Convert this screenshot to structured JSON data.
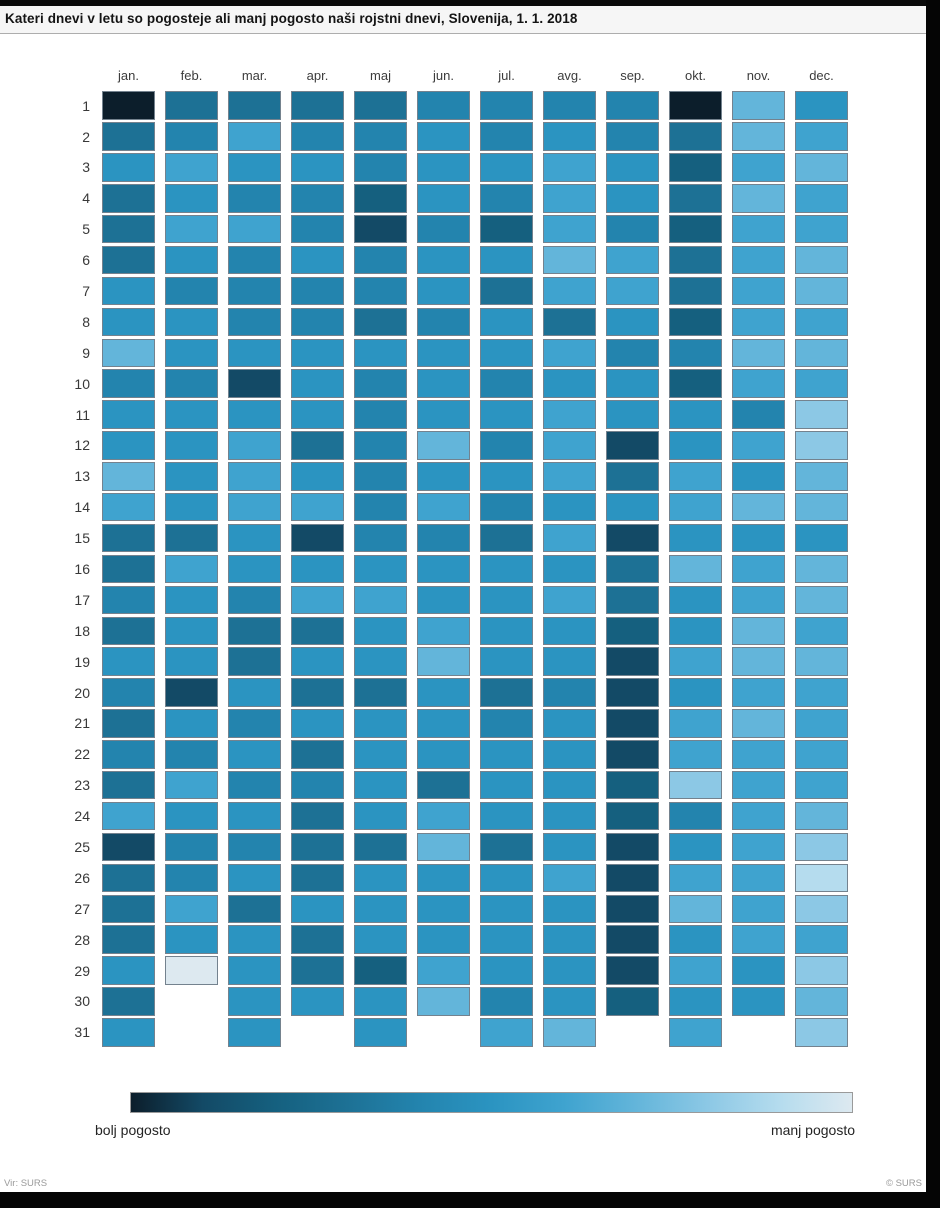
{
  "title": "Kateri dnevi v letu so pogosteje ali manj pogosto naši rojstni dnevi, Slovenija, 1. 1. 2018",
  "legend": {
    "more_label": "bolj pogosto",
    "less_label": "manj pogosto"
  },
  "footer": {
    "source": "Vir: SURS",
    "copyright": "© SURS"
  },
  "chart_data": {
    "type": "heatmap",
    "title": "Kateri dnevi v letu so pogosteje ali manj pogosto naši rojstni dnevi, Slovenija, 1. 1. 2018",
    "legend_dark_label": "bolj pogosto",
    "legend_light_label": "manj pogosto",
    "columns": [
      "jan.",
      "feb.",
      "mar.",
      "apr.",
      "maj",
      "jun.",
      "jul.",
      "avg.",
      "sep.",
      "okt.",
      "nov.",
      "dec."
    ],
    "row_labels": [
      "1",
      "2",
      "3",
      "4",
      "5",
      "6",
      "7",
      "8",
      "9",
      "10",
      "11",
      "12",
      "13",
      "14",
      "15",
      "16",
      "17",
      "18",
      "19",
      "20",
      "21",
      "22",
      "23",
      "24",
      "25",
      "26",
      "27",
      "28",
      "29",
      "30",
      "31"
    ],
    "value_scale": {
      "min": 0,
      "max": 10,
      "meaning": "relative birthday frequency estimated from cell shade: 10 = darkest (bolj pogosto), 0 = lightest (manj pogosto)"
    },
    "palette_light_to_dark": [
      "#dde9f0",
      "#b5dcee",
      "#8cc8e5",
      "#63b5da",
      "#3fa3cf",
      "#2b94c1",
      "#2384ae",
      "#1d7195",
      "#15607f",
      "#134a66",
      "#0c1e2b"
    ],
    "series": [
      {
        "name": "jan.",
        "values": [
          10,
          7,
          5,
          7,
          7,
          7,
          5,
          5,
          3,
          6,
          5,
          5,
          3,
          4,
          7,
          7,
          6,
          7,
          5,
          6,
          7,
          6,
          7,
          4,
          9,
          7,
          7,
          7,
          5,
          7,
          5
        ]
      },
      {
        "name": "feb.",
        "values": [
          7,
          6,
          4,
          5,
          4,
          5,
          6,
          5,
          5,
          6,
          5,
          5,
          5,
          5,
          7,
          4,
          5,
          5,
          5,
          9,
          5,
          6,
          4,
          5,
          6,
          6,
          4,
          5,
          0
        ]
      },
      {
        "name": "mar.",
        "values": [
          7,
          4,
          5,
          6,
          4,
          6,
          6,
          6,
          5,
          9,
          5,
          4,
          4,
          4,
          5,
          5,
          6,
          7,
          7,
          5,
          6,
          5,
          6,
          5,
          6,
          5,
          7,
          5,
          5,
          5,
          5
        ]
      },
      {
        "name": "apr.",
        "values": [
          7,
          6,
          5,
          6,
          6,
          5,
          6,
          6,
          5,
          5,
          5,
          7,
          5,
          4,
          9,
          5,
          4,
          7,
          5,
          7,
          5,
          7,
          6,
          7,
          7,
          7,
          5,
          7,
          7,
          5
        ]
      },
      {
        "name": "maj",
        "values": [
          7,
          6,
          6,
          8,
          9,
          6,
          6,
          7,
          5,
          6,
          6,
          6,
          6,
          6,
          6,
          5,
          4,
          5,
          5,
          7,
          5,
          5,
          5,
          5,
          7,
          5,
          5,
          5,
          8,
          5,
          5
        ]
      },
      {
        "name": "jun.",
        "values": [
          6,
          5,
          5,
          5,
          6,
          5,
          5,
          6,
          5,
          5,
          5,
          3,
          5,
          4,
          6,
          5,
          5,
          4,
          3,
          5,
          5,
          5,
          7,
          4,
          3,
          5,
          5,
          5,
          4,
          3
        ]
      },
      {
        "name": "jul.",
        "values": [
          6,
          6,
          5,
          6,
          8,
          5,
          7,
          5,
          5,
          6,
          5,
          6,
          5,
          6,
          7,
          5,
          5,
          5,
          5,
          7,
          6,
          5,
          5,
          5,
          7,
          5,
          5,
          5,
          5,
          6,
          4
        ]
      },
      {
        "name": "avg.",
        "values": [
          6,
          5,
          4,
          4,
          4,
          3,
          4,
          7,
          4,
          5,
          4,
          4,
          4,
          5,
          4,
          5,
          4,
          5,
          5,
          6,
          5,
          5,
          5,
          5,
          5,
          4,
          5,
          5,
          5,
          5,
          3
        ]
      },
      {
        "name": "sep.",
        "values": [
          6,
          6,
          5,
          5,
          6,
          4,
          4,
          5,
          6,
          5,
          5,
          9,
          7,
          5,
          9,
          7,
          7,
          8,
          9,
          9,
          9,
          9,
          8,
          8,
          9,
          9,
          9,
          9,
          9,
          8
        ]
      },
      {
        "name": "okt.",
        "values": [
          10,
          7,
          8,
          7,
          8,
          7,
          7,
          8,
          6,
          8,
          5,
          5,
          4,
          4,
          5,
          3,
          5,
          5,
          4,
          5,
          4,
          4,
          2,
          6,
          5,
          4,
          3,
          5,
          4,
          5,
          4
        ]
      },
      {
        "name": "nov.",
        "values": [
          3,
          3,
          4,
          3,
          4,
          4,
          4,
          4,
          3,
          4,
          6,
          4,
          5,
          3,
          5,
          4,
          4,
          3,
          3,
          4,
          3,
          4,
          4,
          4,
          4,
          4,
          4,
          4,
          5,
          5
        ]
      },
      {
        "name": "dec.",
        "values": [
          5,
          4,
          3,
          4,
          4,
          3,
          3,
          4,
          3,
          4,
          2,
          2,
          3,
          3,
          5,
          3,
          3,
          4,
          3,
          4,
          4,
          4,
          4,
          3,
          2,
          1,
          2,
          4,
          2,
          3,
          2
        ]
      }
    ]
  }
}
